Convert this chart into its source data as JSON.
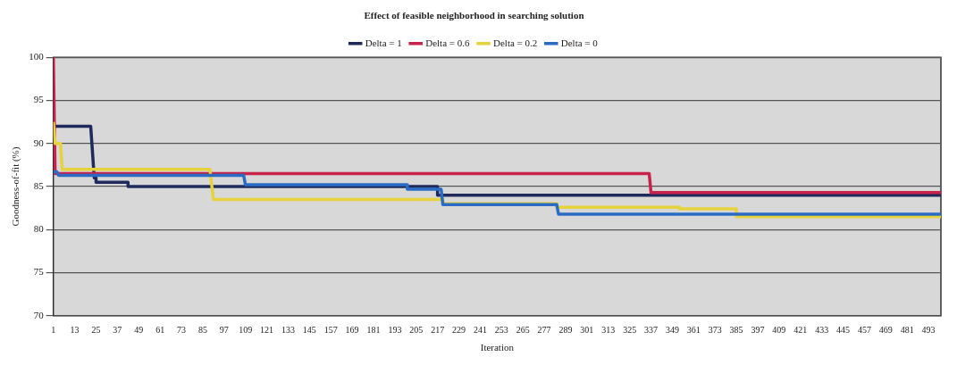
{
  "chart_data": {
    "type": "line",
    "title": "Effect of feasible neighborhood in searching solution",
    "xlabel": "Iteration",
    "ylabel": "Goodness-of-fit (%)",
    "xlim": [
      1,
      500
    ],
    "xticks": [
      1,
      13,
      25,
      37,
      49,
      61,
      73,
      85,
      97,
      109,
      121,
      133,
      145,
      157,
      169,
      181,
      193,
      205,
      217,
      229,
      241,
      253,
      265,
      277,
      289,
      301,
      313,
      325,
      337,
      349,
      361,
      373,
      385,
      397,
      409,
      421,
      433,
      445,
      457,
      469,
      481,
      493
    ],
    "ylim": [
      70,
      100
    ],
    "yticks": [
      70,
      75,
      80,
      85,
      90,
      95,
      100
    ],
    "grid": "y",
    "legend": "top",
    "marker": "none",
    "line_style": "solid",
    "series": [
      {
        "name": "Delta = 1",
        "color": "#1f2a5c",
        "x": [
          1,
          22,
          24,
          25,
          25,
          43,
          43,
          217,
          217,
          500
        ],
        "values": [
          92,
          92,
          86,
          86,
          85.5,
          85.5,
          85,
          85,
          84,
          84
        ]
      },
      {
        "name": "Delta = 0.6",
        "color": "#c8234a",
        "x": [
          1,
          2,
          336,
          337,
          500
        ],
        "values": [
          100,
          86.5,
          86.5,
          84.3,
          84.3
        ]
      },
      {
        "name": "Delta = 0.2",
        "color": "#e6d23c",
        "x": [
          1,
          2,
          5,
          6,
          89,
          91,
          220,
          220,
          284,
          284,
          353,
          353,
          385,
          385,
          500
        ],
        "values": [
          92.5,
          90,
          90,
          87,
          87,
          83.5,
          83.5,
          83,
          83,
          82.6,
          82.6,
          82.4,
          82.4,
          81.5,
          81.5
        ]
      },
      {
        "name": "Delta = 0",
        "color": "#2a6cc4",
        "x": [
          1,
          3,
          4,
          108,
          109,
          200,
          200,
          219,
          220,
          284,
          285,
          500
        ],
        "values": [
          86.7,
          86.7,
          86.3,
          86.3,
          85.2,
          85.2,
          84.7,
          84.7,
          82.9,
          82.9,
          81.8,
          81.8
        ]
      }
    ]
  }
}
